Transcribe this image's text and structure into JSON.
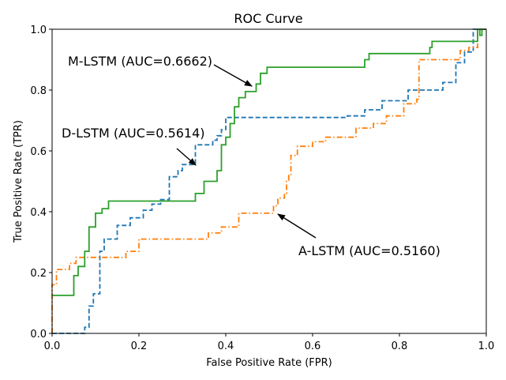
{
  "chart_data": {
    "type": "line",
    "title": "ROC Curve",
    "xlabel": "False Positive Rate (FPR)",
    "ylabel": "True Positive Rate (TPR)",
    "xlim": [
      0,
      1
    ],
    "ylim": [
      0,
      1
    ],
    "xticks": [
      "0.0",
      "0.2",
      "0.4",
      "0.6",
      "0.8",
      "1.0"
    ],
    "yticks": [
      "0.0",
      "0.2",
      "0.4",
      "0.6",
      "0.8",
      "1.0"
    ],
    "grid": false,
    "series": [
      {
        "name": "D-LSTM",
        "auc": 0.5614,
        "color": "#1f77b4",
        "style": "dashed",
        "x": [
          0,
          0.075,
          0.075,
          0.085,
          0.085,
          0.095,
          0.095,
          0.11,
          0.11,
          0.12,
          0.12,
          0.15,
          0.15,
          0.18,
          0.18,
          0.21,
          0.21,
          0.23,
          0.23,
          0.25,
          0.25,
          0.27,
          0.27,
          0.29,
          0.29,
          0.3,
          0.3,
          0.33,
          0.33,
          0.37,
          0.37,
          0.38,
          0.38,
          0.39,
          0.39,
          0.4,
          0.4,
          0.68,
          0.68,
          0.72,
          0.72,
          0.76,
          0.76,
          0.82,
          0.82,
          0.9,
          0.9,
          0.93,
          0.93,
          0.95,
          0.95,
          0.97,
          0.97,
          0.985,
          0.985,
          1.0
        ],
        "y": [
          0,
          0,
          0.02,
          0.02,
          0.09,
          0.09,
          0.13,
          0.13,
          0.27,
          0.27,
          0.31,
          0.31,
          0.355,
          0.355,
          0.38,
          0.38,
          0.405,
          0.405,
          0.425,
          0.425,
          0.44,
          0.44,
          0.515,
          0.515,
          0.535,
          0.535,
          0.555,
          0.555,
          0.62,
          0.62,
          0.635,
          0.635,
          0.65,
          0.65,
          0.67,
          0.67,
          0.71,
          0.71,
          0.715,
          0.715,
          0.735,
          0.735,
          0.765,
          0.765,
          0.8,
          0.8,
          0.825,
          0.825,
          0.89,
          0.89,
          0.925,
          0.925,
          1.0,
          1.0,
          1.0,
          1.0
        ]
      },
      {
        "name": "A-LSTM",
        "auc": 0.516,
        "color": "#ff7f0e",
        "style": "dashdot",
        "x": [
          0,
          0,
          0.01,
          0.01,
          0.04,
          0.04,
          0.055,
          0.055,
          0.17,
          0.17,
          0.2,
          0.2,
          0.36,
          0.36,
          0.39,
          0.39,
          0.43,
          0.43,
          0.51,
          0.51,
          0.52,
          0.52,
          0.535,
          0.535,
          0.54,
          0.54,
          0.545,
          0.545,
          0.55,
          0.55,
          0.565,
          0.565,
          0.6,
          0.6,
          0.63,
          0.63,
          0.7,
          0.7,
          0.74,
          0.74,
          0.77,
          0.77,
          0.81,
          0.81,
          0.84,
          0.84,
          0.845,
          0.845,
          0.94,
          0.94,
          0.96,
          0.96,
          0.98,
          0.98,
          1.0
        ],
        "y": [
          0,
          0.16,
          0.16,
          0.21,
          0.21,
          0.23,
          0.23,
          0.25,
          0.25,
          0.27,
          0.27,
          0.31,
          0.31,
          0.33,
          0.33,
          0.35,
          0.35,
          0.395,
          0.395,
          0.42,
          0.42,
          0.445,
          0.445,
          0.46,
          0.46,
          0.5,
          0.5,
          0.52,
          0.52,
          0.585,
          0.585,
          0.615,
          0.615,
          0.63,
          0.63,
          0.645,
          0.645,
          0.675,
          0.675,
          0.69,
          0.69,
          0.715,
          0.715,
          0.755,
          0.755,
          0.77,
          0.77,
          0.9,
          0.9,
          0.93,
          0.93,
          0.94,
          0.94,
          1.0,
          1.0
        ]
      },
      {
        "name": "M-LSTM",
        "auc": 0.6662,
        "color": "#2ca02c",
        "style": "solid",
        "x": [
          0,
          0.05,
          0.05,
          0.06,
          0.06,
          0.075,
          0.075,
          0.085,
          0.085,
          0.1,
          0.1,
          0.115,
          0.115,
          0.13,
          0.13,
          0.33,
          0.33,
          0.35,
          0.35,
          0.38,
          0.38,
          0.39,
          0.39,
          0.4,
          0.4,
          0.41,
          0.41,
          0.42,
          0.42,
          0.43,
          0.43,
          0.445,
          0.445,
          0.47,
          0.47,
          0.48,
          0.48,
          0.495,
          0.495,
          0.72,
          0.72,
          0.73,
          0.73,
          0.87,
          0.87,
          0.875,
          0.875,
          0.905,
          0.905,
          0.95,
          0.95,
          0.98,
          0.98,
          0.985,
          0.985,
          0.99,
          0.99,
          1.0
        ],
        "y": [
          0.125,
          0.125,
          0.19,
          0.19,
          0.22,
          0.22,
          0.27,
          0.27,
          0.35,
          0.35,
          0.395,
          0.395,
          0.41,
          0.41,
          0.435,
          0.435,
          0.46,
          0.46,
          0.5,
          0.5,
          0.535,
          0.535,
          0.62,
          0.62,
          0.645,
          0.645,
          0.69,
          0.69,
          0.745,
          0.745,
          0.775,
          0.775,
          0.795,
          0.795,
          0.82,
          0.82,
          0.855,
          0.855,
          0.875,
          0.875,
          0.9,
          0.9,
          0.92,
          0.92,
          0.94,
          0.94,
          0.96,
          0.96,
          0.96,
          0.96,
          0.96,
          0.96,
          1.0,
          1.0,
          0.98,
          0.98,
          1.0,
          1.0
        ]
      }
    ],
    "annotations": [
      {
        "text": "M-LSTM (AUC=0.6662)",
        "series": "M-LSTM",
        "point": [
          0.465,
          0.815
        ]
      },
      {
        "text": "D-LSTM (AUC=0.5614)",
        "series": "D-LSTM",
        "point": [
          0.335,
          0.555
        ]
      },
      {
        "text": "A-LSTM (AUC=0.5160)",
        "series": "A-LSTM",
        "point": [
          0.515,
          0.395
        ]
      }
    ]
  }
}
